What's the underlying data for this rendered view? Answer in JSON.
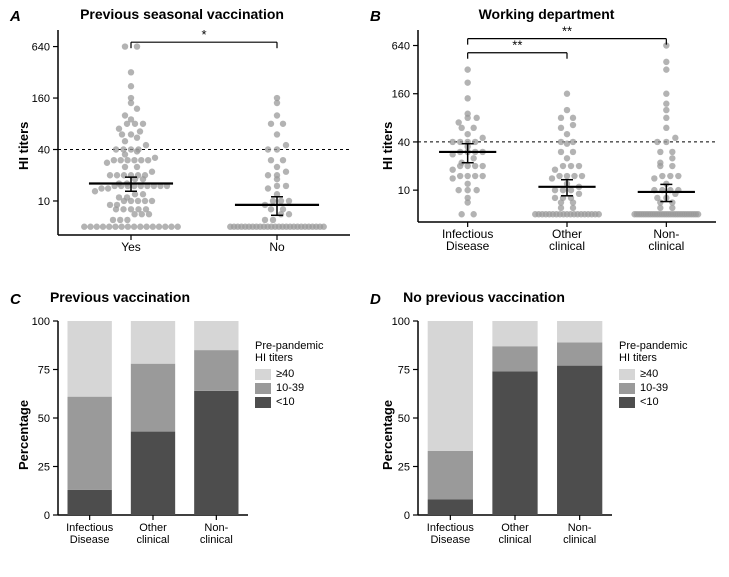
{
  "colors": {
    "bg": "#ffffff",
    "axis": "#000000",
    "dot": "#999999",
    "dot_stroke": "#888888",
    "errorbar": "#000000",
    "bracket": "#000000",
    "dashed": "#000000",
    "bar_lt10": "#4d4d4d",
    "bar_10_39": "#9a9a9a",
    "bar_ge40": "#d6d6d6"
  },
  "panelA": {
    "label": "A",
    "title": "Previous seasonal vaccination",
    "ylabel": "HI titers",
    "yticks": [
      10,
      40,
      160,
      640
    ],
    "ylog": true,
    "ylim": [
      4,
      1000
    ],
    "dashed_y": 40,
    "categories": [
      "Yes",
      "No"
    ],
    "sig": {
      "from": 0,
      "to": 1,
      "label": "*",
      "y": 720
    },
    "groups": [
      {
        "x": 0,
        "mean": 16,
        "ci": 3,
        "points": [
          5,
          5,
          5,
          5,
          5,
          5,
          5,
          5,
          5,
          5,
          5,
          5,
          5,
          5,
          5,
          5,
          6,
          6,
          6,
          7,
          7,
          7,
          8,
          8,
          8,
          8,
          8,
          9,
          9,
          10,
          10,
          10,
          10,
          10,
          11,
          11,
          12,
          12,
          13,
          14,
          14,
          15,
          15,
          15,
          15,
          15,
          15,
          15,
          15,
          15,
          16,
          16,
          18,
          18,
          20,
          20,
          20,
          20,
          20,
          20,
          22,
          25,
          25,
          28,
          30,
          30,
          30,
          30,
          30,
          30,
          32,
          35,
          38,
          40,
          40,
          40,
          40,
          45,
          50,
          55,
          60,
          60,
          65,
          70,
          80,
          80,
          80,
          90,
          100,
          120,
          140,
          160,
          220,
          320,
          640,
          640
        ]
      },
      {
        "x": 1,
        "mean": 9,
        "ci": 2.2,
        "points": [
          5,
          5,
          5,
          5,
          5,
          5,
          5,
          5,
          5,
          5,
          5,
          5,
          5,
          5,
          5,
          5,
          5,
          5,
          5,
          5,
          5,
          5,
          5,
          5,
          5,
          5,
          6,
          6,
          7,
          7,
          8,
          8,
          9,
          10,
          10,
          10,
          12,
          14,
          15,
          15,
          18,
          20,
          20,
          22,
          25,
          30,
          30,
          40,
          40,
          45,
          60,
          80,
          80,
          100,
          140,
          160
        ]
      }
    ]
  },
  "panelB": {
    "label": "B",
    "title": "Working department",
    "ylabel": "HI titers",
    "yticks": [
      10,
      40,
      160,
      640
    ],
    "ylog": true,
    "ylim": [
      4,
      1000
    ],
    "dashed_y": 40,
    "categories": [
      "Infectious\nDisease",
      "Other\nclinical",
      "Non-\nclinical"
    ],
    "sigs": [
      {
        "from": 0,
        "to": 1,
        "label": "**",
        "y": 520
      },
      {
        "from": 0,
        "to": 2,
        "label": "**",
        "y": 780
      }
    ],
    "groups": [
      {
        "x": 0,
        "mean": 30,
        "ci": 8,
        "points": [
          5,
          5,
          7,
          8,
          10,
          10,
          10,
          12,
          14,
          15,
          15,
          15,
          15,
          18,
          20,
          20,
          20,
          20,
          22,
          25,
          28,
          30,
          30,
          30,
          30,
          35,
          40,
          40,
          40,
          40,
          45,
          50,
          60,
          60,
          70,
          80,
          80,
          90,
          140,
          220,
          320
        ]
      },
      {
        "x": 1,
        "mean": 11,
        "ci": 2.5,
        "points": [
          5,
          5,
          5,
          5,
          5,
          5,
          5,
          5,
          5,
          5,
          5,
          5,
          5,
          5,
          5,
          5,
          5,
          5,
          5,
          6,
          6,
          7,
          7,
          8,
          8,
          8,
          9,
          10,
          10,
          10,
          11,
          12,
          14,
          15,
          15,
          15,
          15,
          18,
          20,
          20,
          20,
          25,
          30,
          30,
          38,
          40,
          40,
          50,
          60,
          65,
          80,
          80,
          100,
          160
        ]
      },
      {
        "x": 2,
        "mean": 9.5,
        "ci": 2.3,
        "points": [
          5,
          5,
          5,
          5,
          5,
          5,
          5,
          5,
          5,
          5,
          5,
          5,
          5,
          5,
          5,
          5,
          5,
          5,
          5,
          5,
          5,
          5,
          5,
          5,
          5,
          5,
          5,
          5,
          5,
          6,
          6,
          7,
          7,
          8,
          8,
          9,
          10,
          10,
          10,
          10,
          12,
          14,
          15,
          15,
          15,
          20,
          20,
          22,
          25,
          30,
          30,
          40,
          40,
          45,
          60,
          80,
          100,
          120,
          160,
          320,
          400,
          640
        ]
      }
    ]
  },
  "panelC": {
    "label": "C",
    "title": "Previous vaccination",
    "ylabel": "Percentage",
    "yticks": [
      0,
      25,
      50,
      75,
      100
    ],
    "categories": [
      "Infectious\nDisease",
      "Other\nclinical",
      "Non-\nclinical"
    ],
    "stacks": [
      {
        "lt10": 13,
        "mid": 48,
        "ge40": 39
      },
      {
        "lt10": 43,
        "mid": 35,
        "ge40": 22
      },
      {
        "lt10": 64,
        "mid": 21,
        "ge40": 15
      }
    ]
  },
  "panelD": {
    "label": "D",
    "title": "No previous vaccination",
    "ylabel": "Percentage",
    "yticks": [
      0,
      25,
      50,
      75,
      100
    ],
    "categories": [
      "Infectious\nDisease",
      "Other\nclinical",
      "Non-\nclinical"
    ],
    "stacks": [
      {
        "lt10": 8,
        "mid": 25,
        "ge40": 67
      },
      {
        "lt10": 74,
        "mid": 13,
        "ge40": 13
      },
      {
        "lt10": 77,
        "mid": 12,
        "ge40": 11
      }
    ]
  },
  "legend": {
    "title": "Pre-pandemic\nHI titers",
    "items": [
      {
        "label": "≥40",
        "color_key": "bar_ge40"
      },
      {
        "label": "10-39",
        "color_key": "bar_10_39"
      },
      {
        "label": "<10",
        "color_key": "bar_lt10"
      }
    ]
  }
}
